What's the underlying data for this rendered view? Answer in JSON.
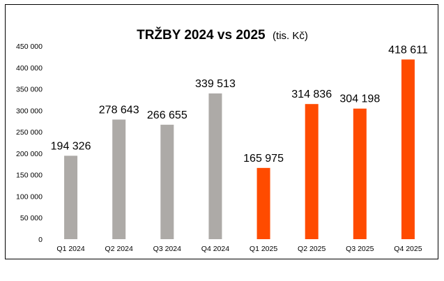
{
  "chart_data": {
    "type": "bar",
    "title": "TRŽBY 2024 vs 2025",
    "subtitle": "(tis. Kč)",
    "xlabel": "",
    "ylabel": "",
    "ylim": [
      0,
      450000
    ],
    "yticks": [
      0,
      50000,
      100000,
      150000,
      200000,
      250000,
      300000,
      350000,
      400000,
      450000
    ],
    "ytick_labels": [
      "0",
      "50 000",
      "100 000",
      "150 000",
      "200 000",
      "250 000",
      "300 000",
      "350 000",
      "400 000",
      "450 000"
    ],
    "grid": false,
    "legend": "none",
    "categories": [
      "Q1 2024",
      "Q2 2024",
      "Q3 2024",
      "Q4 2024",
      "Q1 2025",
      "Q2 2025",
      "Q3 2025",
      "Q4 2025"
    ],
    "values": [
      194326,
      278643,
      266655,
      339513,
      165975,
      314836,
      304198,
      418611
    ],
    "data_labels": [
      "194 326",
      "278 643",
      "266 655",
      "339 513",
      "165 975",
      "314 836",
      "304 198",
      "418 611"
    ],
    "colors": [
      "#ADAAA7",
      "#ADAAA7",
      "#ADAAA7",
      "#ADAAA7",
      "#FF4B00",
      "#FF4B00",
      "#FF4B00",
      "#FF4B00"
    ]
  }
}
